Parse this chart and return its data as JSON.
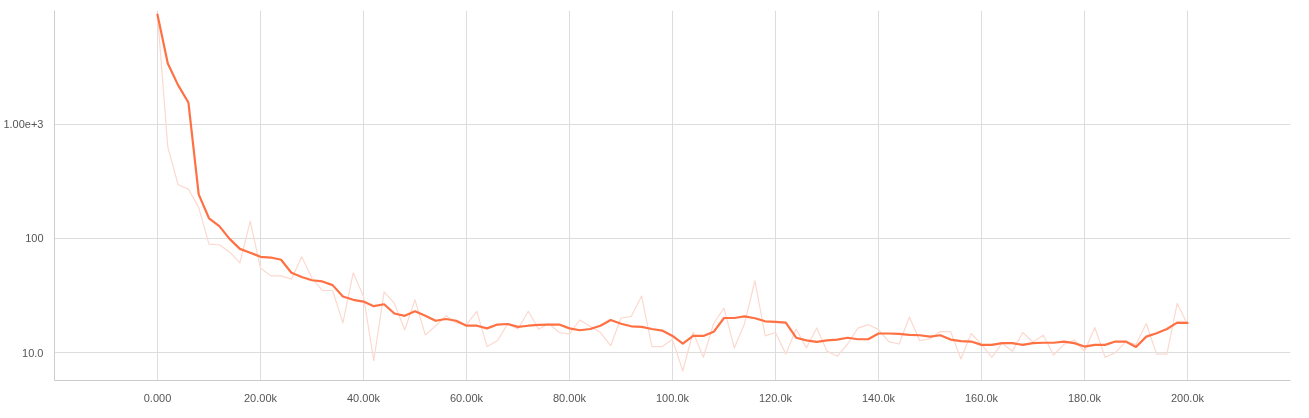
{
  "chart_data": {
    "type": "line",
    "log": "y",
    "grid": true,
    "line_style": "solid",
    "xlim": [
      -20000,
      220000
    ],
    "ylim": [
      5.7,
      9900
    ],
    "xticks": [
      {
        "value": 0,
        "label": "0.000"
      },
      {
        "value": 20000,
        "label": "20.00k"
      },
      {
        "value": 40000,
        "label": "40.00k"
      },
      {
        "value": 60000,
        "label": "60.00k"
      },
      {
        "value": 80000,
        "label": "80.00k"
      },
      {
        "value": 100000,
        "label": "100.0k"
      },
      {
        "value": 120000,
        "label": "120.0k"
      },
      {
        "value": 140000,
        "label": "140.0k"
      },
      {
        "value": 160000,
        "label": "160.0k"
      },
      {
        "value": 180000,
        "label": "180.0k"
      },
      {
        "value": 200000,
        "label": "200.0k"
      }
    ],
    "yticks": [
      {
        "value": 10,
        "label": "10.0"
      },
      100,
      {
        "value": 1000,
        "label": "1.00e+3"
      }
    ],
    "x": [
      0,
      2000,
      4000,
      6000,
      8000,
      10000,
      12000,
      14000,
      16000,
      18000,
      20000,
      22000,
      24000,
      26000,
      28000,
      30000,
      32000,
      34000,
      36000,
      38000,
      40000,
      42000,
      44000,
      46000,
      48000,
      50000,
      52000,
      54000,
      56000,
      58000,
      60000,
      62000,
      64000,
      66000,
      68000,
      70000,
      72000,
      74000,
      76000,
      78000,
      80000,
      82000,
      84000,
      86000,
      88000,
      90000,
      92000,
      94000,
      96000,
      98000,
      100000,
      102000,
      104000,
      106000,
      108000,
      110000,
      112000,
      114000,
      116000,
      118000,
      120000,
      122000,
      124000,
      126000,
      128000,
      130000,
      132000,
      134000,
      136000,
      138000,
      140000,
      142000,
      144000,
      146000,
      148000,
      150000,
      152000,
      154000,
      156000,
      158000,
      160000,
      162000,
      164000,
      166000,
      168000,
      170000,
      172000,
      174000,
      176000,
      178000,
      180000,
      182000,
      184000,
      186000,
      188000,
      190000,
      192000,
      194000,
      196000,
      198000,
      200000
    ],
    "series": [
      {
        "color": "#fcd9cf",
        "values": [
          9100,
          630,
          295,
          270,
          187,
          89,
          88,
          76,
          61,
          142,
          55,
          47,
          47,
          44,
          69,
          45,
          35,
          35,
          18.2,
          50,
          31,
          8.5,
          34,
          27,
          15.8,
          29,
          14.3,
          17.1,
          21,
          18.2,
          17.6,
          23,
          11.3,
          12.7,
          17.8,
          16.1,
          23,
          16,
          18,
          15,
          14.6,
          19.3,
          17,
          15,
          11.5,
          20.1,
          20.8,
          31.3,
          11.3,
          11.3,
          13,
          6.9,
          15.1,
          9.1,
          18,
          24.5,
          11,
          18,
          42.6,
          14,
          15,
          9.7,
          16.1,
          11,
          16.4,
          10.3,
          9.3,
          11.9,
          16.4,
          17.6,
          15.9,
          12.5,
          11.9,
          20.5,
          12.7,
          13.2,
          15.3,
          15.3,
          8.8,
          14.7,
          11.8,
          9.1,
          12.1,
          10.3,
          15,
          12.4,
          14.2,
          9.5,
          11.8,
          12.9,
          10.3,
          16.6,
          9.1,
          10,
          12.4,
          11.8,
          18,
          9.7,
          9.7,
          27,
          17.6
        ]
      },
      {
        "color": "#ff7043",
        "values": [
          9100,
          3400,
          2200,
          1550,
          243,
          150,
          128,
          99,
          81,
          75,
          69,
          68,
          65,
          50,
          46,
          43,
          42,
          39,
          31,
          29,
          28,
          25.5,
          26.5,
          22,
          21,
          23,
          21,
          19,
          19.7,
          19,
          17.2,
          17.2,
          16.3,
          17.6,
          17.8,
          16.8,
          17.2,
          17.5,
          17.6,
          17.6,
          16.3,
          15.7,
          16.1,
          17.2,
          19.3,
          17.9,
          17,
          16.8,
          16.1,
          15.6,
          14,
          12,
          14,
          14,
          15.2,
          20.1,
          20.1,
          20.8,
          20,
          18.8,
          18.6,
          18.3,
          13.5,
          12.8,
          12.4,
          12.8,
          13,
          13.5,
          13.1,
          13.1,
          14.7,
          14.7,
          14.6,
          14.3,
          14.2,
          13.8,
          14.2,
          13,
          12.6,
          12.5,
          11.7,
          11.7,
          12.1,
          12.1,
          11.7,
          12.1,
          12.2,
          12.2,
          12.5,
          12.1,
          11.3,
          11.7,
          11.7,
          12.5,
          12.5,
          11.2,
          13.8,
          14.8,
          16.1,
          18.3,
          18.2
        ]
      }
    ]
  }
}
